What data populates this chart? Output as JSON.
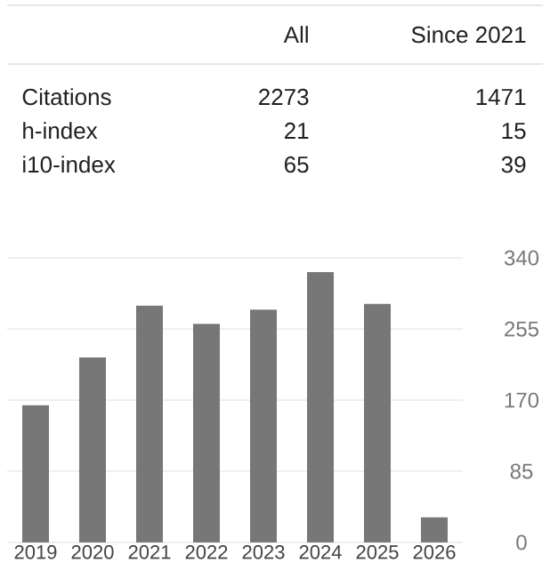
{
  "chart_data": [
    {
      "type": "other",
      "categories": [
        "Citations",
        "h-index",
        "i10-index"
      ],
      "data_labels": true,
      "series": [
        {
          "name": "All",
          "values": [
            2273,
            21,
            65
          ]
        },
        {
          "name": "Since 2021",
          "values": [
            1471,
            15,
            39
          ]
        }
      ]
    },
    {
      "type": "bar",
      "categories": [
        "2019",
        "2020",
        "2021",
        "2022",
        "2023",
        "2024",
        "2025",
        "2026"
      ],
      "values": [
        164,
        221,
        283,
        261,
        278,
        323,
        285,
        30
      ],
      "color": "#777777",
      "ylim": [
        0,
        340
      ],
      "yticks": [
        0,
        85,
        170,
        255,
        340
      ],
      "grid": "y"
    }
  ]
}
